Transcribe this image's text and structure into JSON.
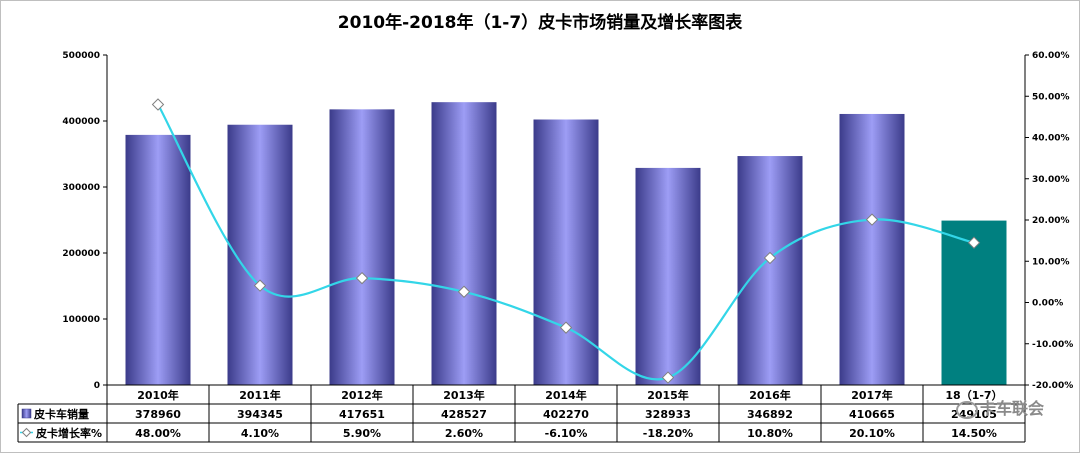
{
  "chart_data": {
    "type": "bar",
    "title": "2010年-2018年（1-7）皮卡市场销量及增长率图表",
    "categories": [
      "2010年",
      "2011年",
      "2012年",
      "2013年",
      "2014年",
      "2015年",
      "2016年",
      "2017年",
      "18（1-7）"
    ],
    "series": [
      {
        "name": "皮卡车销量",
        "type": "bar",
        "axis": "left",
        "values": [
          378960,
          394345,
          417651,
          428527,
          402270,
          328933,
          346892,
          410665,
          249105
        ],
        "labels": [
          "378960",
          "394345",
          "417651",
          "428527",
          "402270",
          "328933",
          "346892",
          "410665",
          "249105"
        ]
      },
      {
        "name": "皮卡增长率%",
        "type": "line",
        "axis": "right",
        "values": [
          48.0,
          4.1,
          5.9,
          2.6,
          -6.1,
          -18.2,
          10.8,
          20.1,
          14.5
        ],
        "labels": [
          "48.00%",
          "4.10%",
          "5.90%",
          "2.60%",
          "-6.10%",
          "-18.20%",
          "10.80%",
          "20.10%",
          "14.50%"
        ]
      }
    ],
    "y_left": {
      "ylim": [
        0,
        500000
      ],
      "ticks": [
        0,
        100000,
        200000,
        300000,
        400000,
        500000
      ],
      "tick_labels": [
        "0",
        "100000",
        "200000",
        "300000",
        "400000",
        "500000"
      ]
    },
    "y_right": {
      "ylim": [
        -20,
        60
      ],
      "ticks": [
        -20,
        -10,
        0,
        10,
        20,
        30,
        40,
        50,
        60
      ],
      "tick_labels": [
        "-20.00%",
        "-10.00%",
        "0.00%",
        "10.00%",
        "20.00%",
        "30.00%",
        "40.00%",
        "50.00%",
        "60.00%"
      ]
    },
    "grid": false,
    "legend": "data-table-below",
    "colors": {
      "bar": "#8f8fef",
      "bar_dark": "#3b3b8a",
      "bar_highlight": "#008080",
      "line": "#33d6e8",
      "marker_fill": "#ffffff",
      "marker_stroke": "#808080"
    }
  },
  "watermark": "卡车联会"
}
